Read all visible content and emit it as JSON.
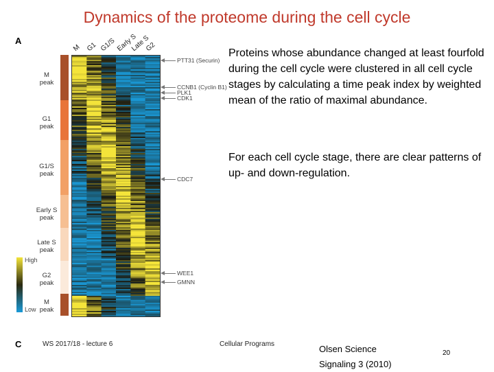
{
  "slide": {
    "title": "Dynamics of the proteome during the cell cycle",
    "panel_a": "A",
    "panel_c": "C",
    "column_labels": [
      "M",
      "G1",
      "G1/S",
      "Early S",
      "Late S",
      "G2"
    ],
    "stage_labels": [
      "M\npeak",
      "G1\npeak",
      "G1/S\npeak",
      "Early S\npeak",
      "Late S\npeak",
      "G2\npeak",
      "M\npeak"
    ],
    "colorbar_high": "High",
    "colorbar_low": "Low",
    "protein_labels": [
      "PTT31 (Securin)",
      "CCNB1 (Cyclin B1)",
      "PLK1",
      "CDK1",
      "CDC7",
      "WEE1",
      "GMNN"
    ],
    "paragraph1": "Proteins whose abundance changed at least fourfold during the cell cycle were clustered in all cell cycle stages by calculating a time peak index by weighted mean of the ratio of maximal abundance.",
    "paragraph2": "For each cell cycle stage, there are clear patterns of up- and down-regulation.",
    "footer_left": "WS 2017/18 - lecture 6",
    "footer_mid": "Cellular Programs",
    "ref_line1": "Olsen Science",
    "ref_line2": "Signaling 3 (2010)",
    "page": "20",
    "colors": {
      "title": "#c0392b",
      "high": "#f4e43a",
      "low": "#1a9ad8",
      "mid": "#1c1c12"
    }
  }
}
